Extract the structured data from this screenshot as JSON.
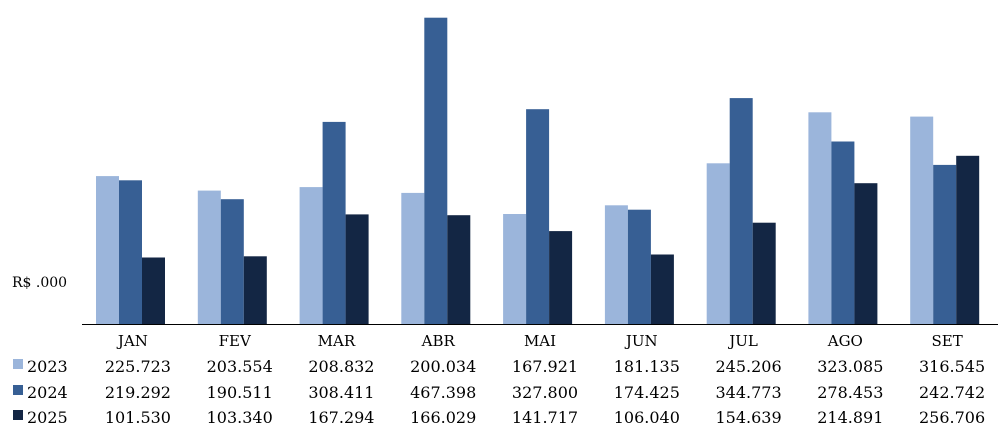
{
  "chart_data": {
    "type": "bar",
    "unit_label": "R$ .000",
    "categories": [
      "JAN",
      "FEV",
      "MAR",
      "ABR",
      "MAI",
      "JUN",
      "JUL",
      "AGO",
      "SET"
    ],
    "series": [
      {
        "name": "2023",
        "color": "#9bb5db",
        "values": [
          225.723,
          203.554,
          208.832,
          200.034,
          167.921,
          181.135,
          245.206,
          323.085,
          316.545
        ],
        "labels": [
          "225.723",
          "203.554",
          "208.832",
          "200.034",
          "167.921",
          "181.135",
          "245.206",
          "323.085",
          "316.545"
        ]
      },
      {
        "name": "2024",
        "color": "#375f94",
        "values": [
          219.292,
          190.511,
          308.411,
          467.398,
          327.8,
          174.425,
          344.773,
          278.453,
          242.742
        ],
        "labels": [
          "219.292",
          "190.511",
          "308.411",
          "467.398",
          "327.800",
          "174.425",
          "344.773",
          "278.453",
          "242.742"
        ]
      },
      {
        "name": "2025",
        "color": "#132644",
        "values": [
          101.53,
          103.34,
          167.294,
          166.029,
          141.717,
          106.04,
          154.639,
          214.891,
          256.706
        ],
        "labels": [
          "101.530",
          "103.340",
          "167.294",
          "166.029",
          "141.717",
          "106.040",
          "154.639",
          "214.891",
          "256.706"
        ]
      }
    ],
    "ylim": [
      0,
      470
    ],
    "grid": false,
    "legend": "data-table-below"
  }
}
